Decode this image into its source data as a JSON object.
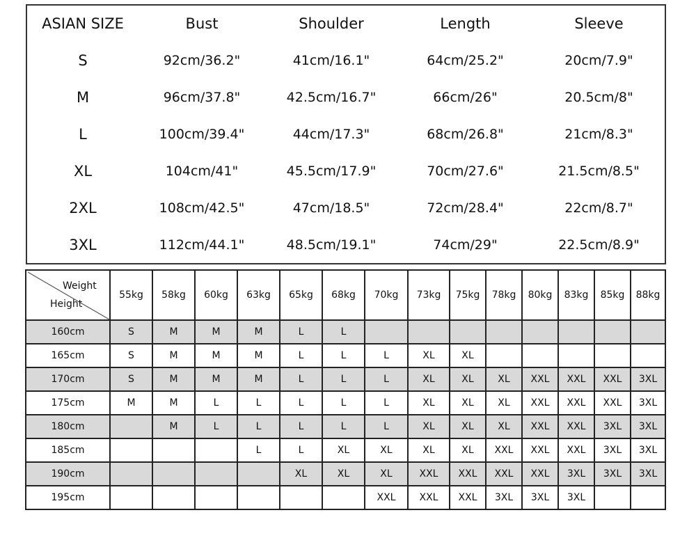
{
  "measurements": {
    "headers": [
      "ASIAN SIZE",
      "Bust",
      "Shoulder",
      "Length",
      "Sleeve"
    ],
    "rows": [
      [
        "S",
        "92cm/36.2\"",
        "41cm/16.1\"",
        "64cm/25.2\"",
        "20cm/7.9\""
      ],
      [
        "M",
        "96cm/37.8\"",
        "42.5cm/16.7\"",
        "66cm/26\"",
        "20.5cm/8\""
      ],
      [
        "L",
        "100cm/39.4\"",
        "44cm/17.3\"",
        "68cm/26.8\"",
        "21cm/8.3\""
      ],
      [
        "XL",
        "104cm/41\"",
        "45.5cm/17.9\"",
        "70cm/27.6\"",
        "21.5cm/8.5\""
      ],
      [
        "2XL",
        "108cm/42.5\"",
        "47cm/18.5\"",
        "72cm/28.4\"",
        "22cm/8.7\""
      ],
      [
        "3XL",
        "112cm/44.1\"",
        "48.5cm/19.1\"",
        "74cm/29\"",
        "22.5cm/8.9\""
      ]
    ]
  },
  "fit_chart": {
    "corner_weight": "Weight",
    "corner_height": "Height",
    "weights": [
      "55kg",
      "58kg",
      "60kg",
      "63kg",
      "65kg",
      "68kg",
      "70kg",
      "73kg",
      "75kg",
      "78kg",
      "80kg",
      "83kg",
      "85kg",
      "88kg"
    ],
    "rows": [
      {
        "height": "160cm",
        "sizes": [
          "S",
          "M",
          "M",
          "M",
          "L",
          "L",
          "",
          "",
          "",
          "",
          "",
          "",
          "",
          ""
        ]
      },
      {
        "height": "165cm",
        "sizes": [
          "S",
          "M",
          "M",
          "M",
          "L",
          "L",
          "L",
          "XL",
          "XL",
          "",
          "",
          "",
          "",
          ""
        ]
      },
      {
        "height": "170cm",
        "sizes": [
          "S",
          "M",
          "M",
          "M",
          "L",
          "L",
          "L",
          "XL",
          "XL",
          "XL",
          "XXL",
          "XXL",
          "XXL",
          "3XL"
        ]
      },
      {
        "height": "175cm",
        "sizes": [
          "M",
          "M",
          "L",
          "L",
          "L",
          "L",
          "L",
          "XL",
          "XL",
          "XL",
          "XXL",
          "XXL",
          "XXL",
          "3XL"
        ]
      },
      {
        "height": "180cm",
        "sizes": [
          "",
          "M",
          "L",
          "L",
          "L",
          "L",
          "L",
          "XL",
          "XL",
          "XL",
          "XXL",
          "XXL",
          "3XL",
          "3XL"
        ]
      },
      {
        "height": "185cm",
        "sizes": [
          "",
          "",
          "",
          "L",
          "L",
          "XL",
          "XL",
          "XL",
          "XL",
          "XXL",
          "XXL",
          "XXL",
          "3XL",
          "3XL"
        ]
      },
      {
        "height": "190cm",
        "sizes": [
          "",
          "",
          "",
          "",
          "XL",
          "XL",
          "XL",
          "XXL",
          "XXL",
          "XXL",
          "XXL",
          "3XL",
          "3XL",
          "3XL"
        ]
      },
      {
        "height": "195cm",
        "sizes": [
          "",
          "",
          "",
          "",
          "",
          "",
          "XXL",
          "XXL",
          "XXL",
          "3XL",
          "3XL",
          "3XL",
          "",
          ""
        ]
      }
    ],
    "shaded_row_color": "#d9d9d9"
  }
}
